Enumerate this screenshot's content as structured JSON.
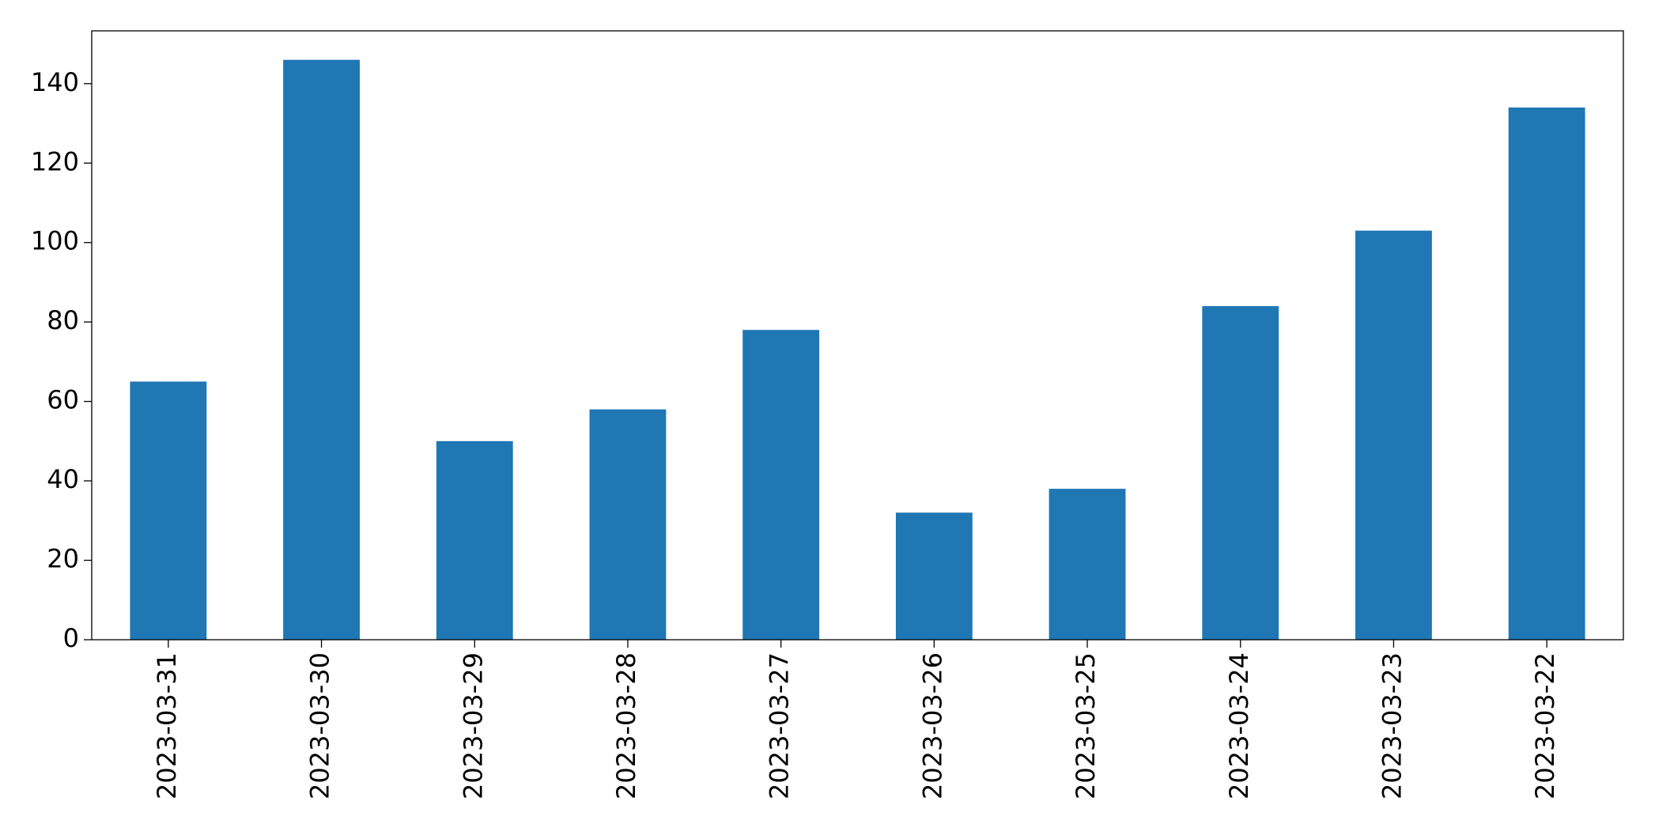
{
  "chart_data": {
    "type": "bar",
    "categories": [
      "2023-03-31",
      "2023-03-30",
      "2023-03-29",
      "2023-03-28",
      "2023-03-27",
      "2023-03-26",
      "2023-03-25",
      "2023-03-24",
      "2023-03-23",
      "2023-03-22"
    ],
    "values": [
      65,
      146,
      50,
      58,
      78,
      32,
      38,
      84,
      103,
      134
    ],
    "color": "#1f77b4",
    "ylim": [
      0,
      153.3
    ],
    "yticks": [
      0,
      20,
      40,
      60,
      80,
      100,
      120,
      140
    ],
    "grid": false
  }
}
